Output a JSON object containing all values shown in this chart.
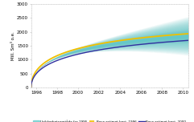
{
  "ylabel": "Mill. Sm³ o.e.",
  "xlim": [
    1995.5,
    2010.5
  ],
  "ylim": [
    0,
    3000
  ],
  "yticks": [
    0,
    500,
    1000,
    1500,
    2000,
    2500,
    3000
  ],
  "xticks": [
    1996,
    1998,
    2000,
    2002,
    2004,
    2006,
    2008,
    2010
  ],
  "start_year": 1995.5,
  "end_year": 2010.5,
  "background_color": "#ffffff",
  "plot_bg": "#ffffff",
  "band_color": "#60c8c8",
  "line1_color": "#f0c000",
  "line2_color": "#3030a0",
  "legend_labels": [
    "Usikkerhetsomtåde fra 1995",
    "Base estimat hest. 1996",
    "Base estimat hest. 2000"
  ]
}
